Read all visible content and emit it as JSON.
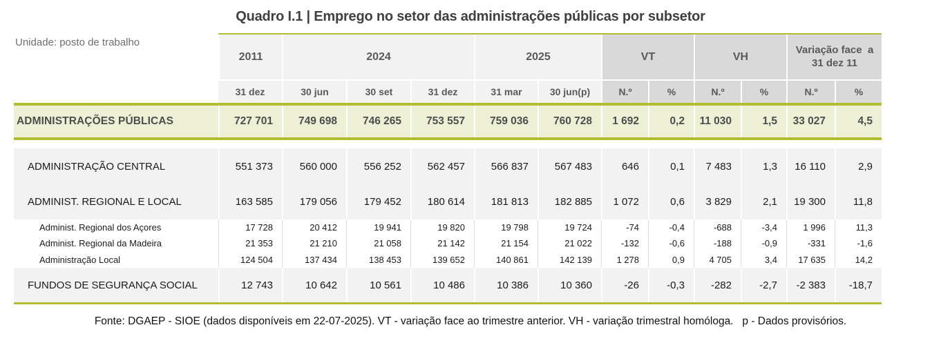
{
  "title": "Quadro I.1 | Emprego no setor das administrações públicas por subsetor",
  "unit_note": "Unidade: posto de trabalho",
  "colors": {
    "accent_olive": "#b3bc2e",
    "highlight_row_bg": "#eef0d5",
    "header_gray_bg": "#d9d9d9",
    "cell_light_bg": "#f2f2f2"
  },
  "header": {
    "groups": [
      "2011",
      "2024",
      "2025",
      "VT",
      "VH",
      "Variação face  a 31 dez 11"
    ],
    "subcolumns": [
      "31 dez",
      "30 jun",
      "30 set",
      "31 dez",
      "31 mar",
      "30 jun(p)",
      "N.º",
      "%",
      "N.º",
      "%",
      "N.º",
      "%"
    ]
  },
  "rows": [
    {
      "label": "ADMINISTRAÇÕES PÚBLICAS",
      "level": "total",
      "values": [
        "727 701",
        "749 698",
        "746 265",
        "753 557",
        "759 036",
        "760 728",
        "1 692",
        "0,2",
        "11 030",
        "1,5",
        "33 027",
        "4,5"
      ]
    },
    {
      "label": "ADMINISTRAÇÃO CENTRAL",
      "level": "main",
      "values": [
        "551 373",
        "560 000",
        "556 252",
        "562 457",
        "566 837",
        "567 483",
        "646",
        "0,1",
        "7 483",
        "1,3",
        "16 110",
        "2,9"
      ]
    },
    {
      "label": "ADMINIST. REGIONAL E LOCAL",
      "level": "main",
      "values": [
        "163 585",
        "179 056",
        "179 452",
        "180 614",
        "181 813",
        "182 885",
        "1 072",
        "0,6",
        "3 829",
        "2,1",
        "19 300",
        "11,8"
      ]
    },
    {
      "label": "Administ. Regional dos Açores",
      "level": "sub",
      "values": [
        "17 728",
        "20 412",
        "19 941",
        "19 820",
        "19 798",
        "19 724",
        "-74",
        "-0,4",
        "-688",
        "-3,4",
        "1 996",
        "11,3"
      ]
    },
    {
      "label": "Administ. Regional da Madeira",
      "level": "sub",
      "values": [
        "21 353",
        "21 210",
        "21 058",
        "21 142",
        "21 154",
        "21 022",
        "-132",
        "-0,6",
        "-188",
        "-0,9",
        "-331",
        "-1,6"
      ]
    },
    {
      "label": "Administração Local",
      "level": "sub",
      "values": [
        "124 504",
        "137 434",
        "138 453",
        "139 652",
        "140 861",
        "142 139",
        "1 278",
        "0,9",
        "4 705",
        "3,4",
        "17 635",
        "14,2"
      ]
    },
    {
      "label": "FUNDOS DE SEGURANÇA SOCIAL",
      "level": "main",
      "values": [
        "12 743",
        "10 642",
        "10 561",
        "10 486",
        "10 386",
        "10 360",
        "-26",
        "-0,3",
        "-282",
        "-2,7",
        "-2 383",
        "-18,7"
      ]
    }
  ],
  "footer": "Fonte: DGAEP - SIOE (dados disponíveis em 22-07-2025). VT - variação face ao trimestre anterior. VH - variação trimestral homóloga.   p - Dados provisórios."
}
